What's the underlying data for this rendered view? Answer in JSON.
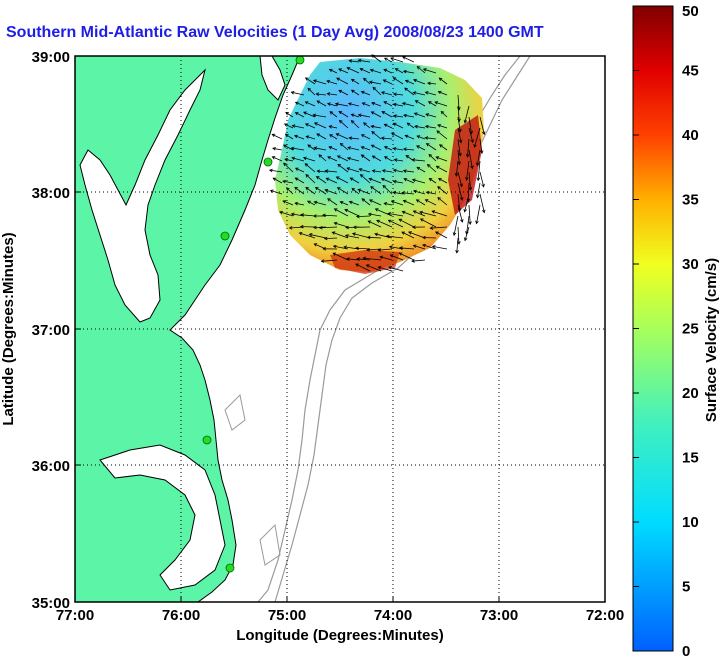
{
  "title": "Southern Mid-Atlantic Raw Velocities (1 Day Avg) 2008/08/23 1400 GMT",
  "map": {
    "x_axis_label": "Longitude (Degrees:Minutes)",
    "y_axis_label": "Latitude (Degrees:Minutes)",
    "x_ticks": [
      "77:00",
      "76:00",
      "75:00",
      "74:00",
      "73:00",
      "72:00"
    ],
    "y_ticks": [
      "39:00",
      "38:00",
      "37:00",
      "36:00",
      "35:00"
    ],
    "colors": {
      "land": "#5cf5a8",
      "water": "#ffffff",
      "coast": "#000000",
      "bathymetry": "#9a9a9a",
      "station": "#22dd22"
    }
  },
  "colorbar": {
    "label": "Surface Velocity (cm/s)",
    "ticks": [
      "50",
      "45",
      "40",
      "35",
      "30",
      "25",
      "20",
      "15",
      "10",
      "5",
      "0"
    ],
    "range": [
      0,
      50
    ]
  }
}
